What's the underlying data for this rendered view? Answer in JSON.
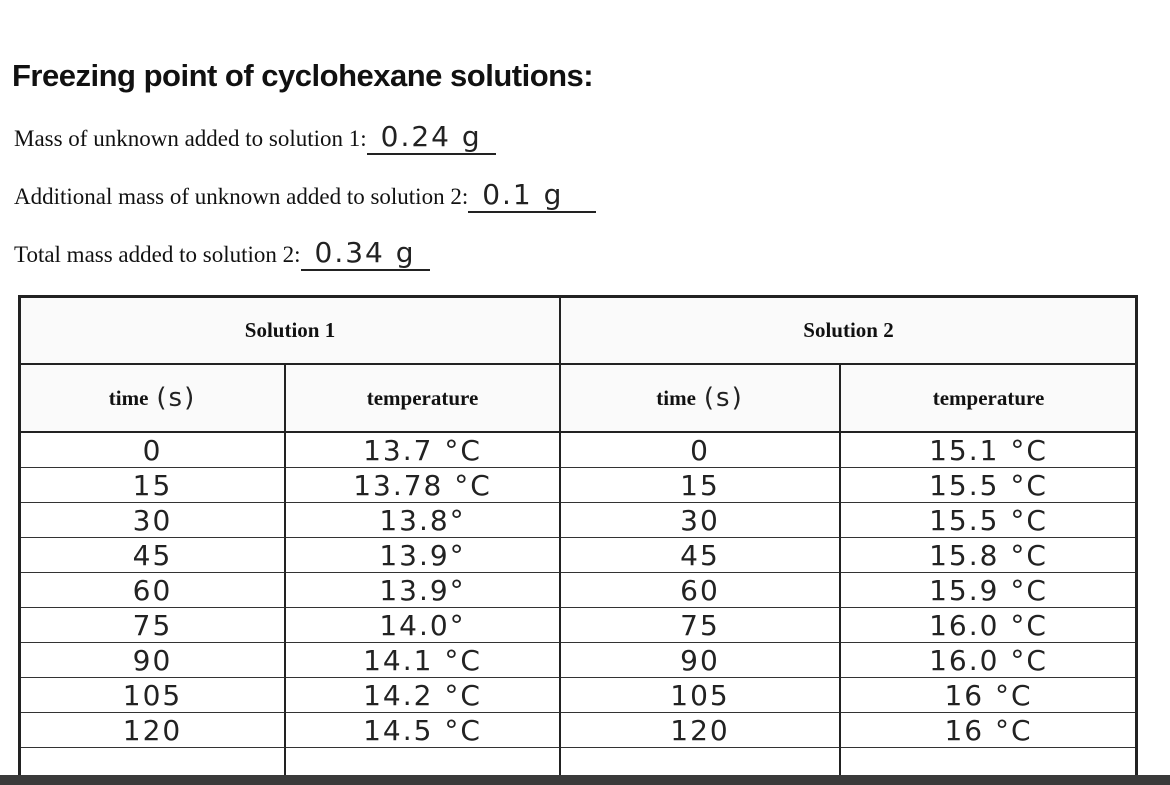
{
  "header": {
    "title": "Freezing point of cyclohexane solutions:"
  },
  "fields": [
    {
      "label": "Mass of unknown added to solution 1:",
      "value": "0.24 g"
    },
    {
      "label": "Additional mass of unknown added to solution 2:",
      "value": "0.1 g"
    },
    {
      "label": "Total mass added to solution 2:",
      "value": "0.34 g"
    }
  ],
  "table": {
    "groups": [
      "Solution 1",
      "Solution 2"
    ],
    "columns": [
      {
        "label": "time",
        "note": "(s)"
      },
      {
        "label": "temperature"
      },
      {
        "label": "time",
        "note": "(s)"
      },
      {
        "label": "temperature"
      }
    ],
    "rows": [
      [
        "0",
        "13.7 °C",
        "0",
        "15.1 °C"
      ],
      [
        "15",
        "13.78 °C",
        "15",
        "15.5 °C"
      ],
      [
        "30",
        "13.8°",
        "30",
        "15.5 °C"
      ],
      [
        "45",
        "13.9°",
        "45",
        "15.8 °C"
      ],
      [
        "60",
        "13.9°",
        "60",
        "15.9 °C"
      ],
      [
        "75",
        "14.0°",
        "75",
        "16.0 °C"
      ],
      [
        "90",
        "14.1 °C",
        "90",
        "16.0 °C"
      ],
      [
        "105",
        "14.2 °C",
        "105",
        "16 °C"
      ],
      [
        "120",
        "14.5 °C",
        "120",
        "16 °C"
      ]
    ]
  }
}
